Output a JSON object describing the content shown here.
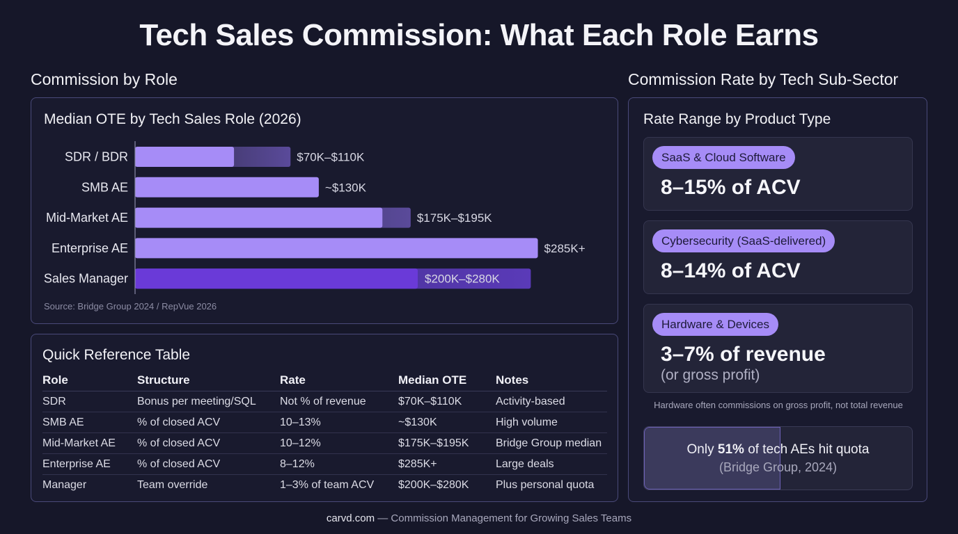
{
  "title": "Tech Sales Commission: What Each Role Earns",
  "left_section": {
    "heading": "Commission by Role"
  },
  "right_section": {
    "heading": "Commission Rate by Tech Sub-Sector"
  },
  "chart_data": {
    "type": "bar",
    "orientation": "horizontal",
    "title": "Median OTE by Tech Sales Role (2026)",
    "xlabel": "",
    "ylabel": "",
    "units": "USD thousands",
    "categories": [
      "SDR / BDR",
      "SMB AE",
      "Mid-Market AE",
      "Enterprise AE",
      "Sales Manager"
    ],
    "series": [
      {
        "name": "OTE low",
        "values": [
          70,
          130,
          175,
          285,
          200
        ]
      },
      {
        "name": "OTE high",
        "values": [
          110,
          130,
          195,
          285,
          280
        ]
      }
    ],
    "value_labels": [
      "$70K–$110K",
      "~$130K",
      "$175K–$195K",
      "$285K+",
      "$200K–$280K"
    ],
    "highlight_category": "Sales Manager",
    "colors": {
      "bar": "#a68cf7",
      "highlight": "#6a3ad8",
      "range": "#5a4a9a"
    },
    "grid": false,
    "source": "Source: Bridge Group 2024 / RepVue 2026"
  },
  "table": {
    "title": "Quick Reference Table",
    "columns": [
      "Role",
      "Structure",
      "Rate",
      "Median OTE",
      "Notes"
    ],
    "rows": [
      [
        "SDR",
        "Bonus per meeting/SQL",
        "Not % of revenue",
        "$70K–$110K",
        "Activity-based"
      ],
      [
        "SMB AE",
        "% of closed ACV",
        "10–13%",
        "~$130K",
        "High volume"
      ],
      [
        "Mid-Market AE",
        "% of closed ACV",
        "10–12%",
        "$175K–$195K",
        "Bridge Group median"
      ],
      [
        "Enterprise AE",
        "% of closed ACV",
        "8–12%",
        "$285K+",
        "Large deals"
      ],
      [
        "Manager",
        "Team override",
        "1–3% of team ACV",
        "$200K–$280K",
        "Plus personal quota"
      ]
    ]
  },
  "sectors": {
    "heading": "Rate Range by Product Type",
    "cards": [
      {
        "tag": "SaaS & Cloud Software",
        "rate": "8–15% of ACV",
        "sub": ""
      },
      {
        "tag": "Cybersecurity (SaaS-delivered)",
        "rate": "8–14% of ACV",
        "sub": ""
      },
      {
        "tag": "Hardware & Devices",
        "rate": "3–7% of revenue",
        "sub": "(or gross profit)"
      }
    ],
    "note": "Hardware often commissions on gross profit, not total revenue",
    "quota": {
      "prefix": "Only",
      "percent": "51%",
      "suffix": "of tech AEs hit quota",
      "source": "(Bridge Group, 2024)",
      "fraction": 0.51
    }
  },
  "footer": {
    "brand": "carvd.com",
    "tagline": "— Commission Management for Growing Sales Teams"
  }
}
